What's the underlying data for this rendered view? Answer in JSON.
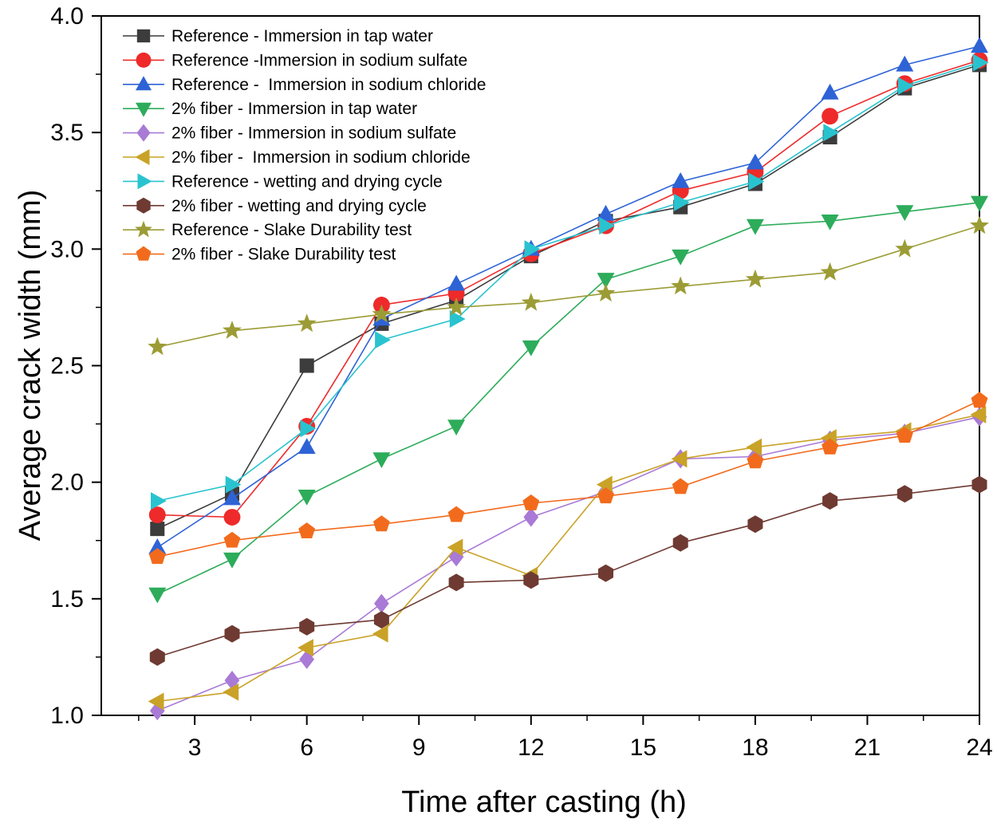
{
  "chart_data": {
    "type": "line",
    "title": "",
    "xlabel": "Time after casting (h)",
    "ylabel": "Average crack width (mm)",
    "xlim": [
      0.5,
      24
    ],
    "ylim": [
      1.0,
      4.0
    ],
    "xticks": [
      3,
      6,
      9,
      12,
      15,
      18,
      21,
      24
    ],
    "xtick_labels": [
      "3",
      "6",
      "9",
      "12",
      "15",
      "18",
      "21",
      "24"
    ],
    "yticks": [
      1.0,
      1.5,
      2.0,
      2.5,
      3.0,
      3.5,
      4.0
    ],
    "ytick_labels": [
      "1.0",
      "1.5",
      "2.0",
      "2.5",
      "3.0",
      "3.5",
      "4.0"
    ],
    "legend_position": "top-left",
    "x": [
      2,
      4,
      6,
      8,
      10,
      12,
      14,
      16,
      18,
      20,
      22,
      24
    ],
    "series": [
      {
        "name": "Reference - Immersion in tap water",
        "color": "#3c3c3c",
        "marker": "square",
        "values": [
          1.8,
          1.95,
          2.5,
          2.68,
          2.78,
          2.97,
          3.12,
          3.18,
          3.28,
          3.48,
          3.69,
          3.79
        ]
      },
      {
        "name": "Reference -Immersion in sodium sulfate",
        "color": "#ee2a2a",
        "marker": "circle",
        "values": [
          1.86,
          1.85,
          2.24,
          2.76,
          2.81,
          2.98,
          3.1,
          3.25,
          3.33,
          3.57,
          3.71,
          3.81
        ]
      },
      {
        "name": "Reference -  Immersion in sodium chloride",
        "color": "#2e63d6",
        "marker": "triangle-up",
        "values": [
          1.72,
          1.93,
          2.15,
          2.7,
          2.85,
          3.0,
          3.15,
          3.29,
          3.37,
          3.67,
          3.79,
          3.87
        ]
      },
      {
        "name": "2% fiber - Immersion in tap water",
        "color": "#2dac5a",
        "marker": "triangle-down",
        "values": [
          1.52,
          1.67,
          1.94,
          2.1,
          2.24,
          2.58,
          2.87,
          2.97,
          3.1,
          3.12,
          3.16,
          3.2
        ]
      },
      {
        "name": "2% fiber - Immersion in sodium sulfate",
        "color": "#a97ad6",
        "marker": "diamond",
        "values": [
          1.02,
          1.15,
          1.24,
          1.48,
          1.68,
          1.85,
          1.96,
          2.1,
          2.11,
          2.18,
          2.21,
          2.28
        ]
      },
      {
        "name": "2% fiber -  Immersion in sodium chloride",
        "color": "#c9a227",
        "marker": "triangle-left",
        "values": [
          1.06,
          1.1,
          1.29,
          1.35,
          1.72,
          1.6,
          1.99,
          2.1,
          2.15,
          2.19,
          2.22,
          2.29
        ]
      },
      {
        "name": "Reference - wetting and drying cycle",
        "color": "#29c3cf",
        "marker": "triangle-right",
        "values": [
          1.92,
          1.99,
          2.23,
          2.61,
          2.7,
          3.0,
          3.1,
          3.2,
          3.29,
          3.5,
          3.7,
          3.8
        ]
      },
      {
        "name": "2% fiber - wetting and drying cycle",
        "color": "#6e3a32",
        "marker": "hexagon",
        "values": [
          1.25,
          1.35,
          1.38,
          1.41,
          1.57,
          1.58,
          1.61,
          1.74,
          1.82,
          1.92,
          1.95,
          1.99
        ]
      },
      {
        "name": "Reference - Slake Durability test",
        "color": "#9c9c36",
        "marker": "star",
        "values": [
          2.58,
          2.65,
          2.68,
          2.72,
          2.75,
          2.77,
          2.81,
          2.84,
          2.87,
          2.9,
          3.0,
          3.1
        ]
      },
      {
        "name": "2% fiber - Slake Durability test",
        "color": "#f26b1d",
        "marker": "pentagon",
        "values": [
          1.68,
          1.75,
          1.79,
          1.82,
          1.86,
          1.91,
          1.94,
          1.98,
          2.09,
          2.15,
          2.2,
          2.35
        ]
      }
    ]
  }
}
